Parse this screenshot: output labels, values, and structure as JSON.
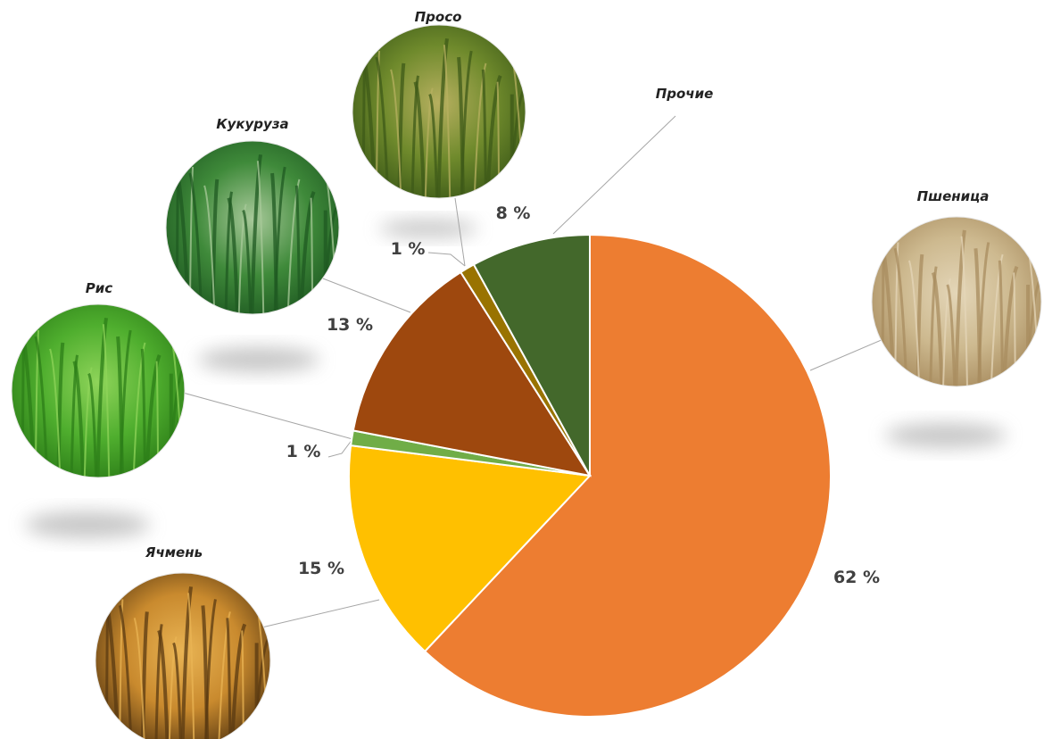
{
  "chart_data": {
    "type": "pie",
    "start_angle_deg": 0,
    "direction": "clockwise",
    "slices": [
      {
        "name": "Пшеница",
        "value": 62,
        "label": "62 %",
        "color": "#ED7D31",
        "photo": "wheat",
        "photo_colors": [
          "#cdb98f",
          "#a88c5f",
          "#e4d6b8"
        ]
      },
      {
        "name": "Ячмень",
        "value": 15,
        "label": "15 %",
        "color": "#FFC000",
        "photo": "barley",
        "photo_colors": [
          "#c98a2e",
          "#5a3a12",
          "#e9b454"
        ]
      },
      {
        "name": "Рис",
        "value": 1,
        "label": "1 %",
        "color": "#70AD47",
        "photo": "rice",
        "photo_colors": [
          "#4fae2e",
          "#2c7d18",
          "#8fd45a"
        ]
      },
      {
        "name": "Кукуруза",
        "value": 13,
        "label": "13 %",
        "color": "#9E480E",
        "photo": "corn",
        "photo_colors": [
          "#3f8a3a",
          "#1f5a22",
          "#a8c99a"
        ]
      },
      {
        "name": "Просо",
        "value": 1,
        "label": "1 %",
        "color": "#997300",
        "photo": "millet",
        "photo_colors": [
          "#6f8a2c",
          "#3d5a18",
          "#b7b060"
        ]
      },
      {
        "name": "Прочие",
        "value": 8,
        "label": "8 %",
        "color": "#43682B",
        "photo": "",
        "photo_colors": []
      }
    ]
  }
}
